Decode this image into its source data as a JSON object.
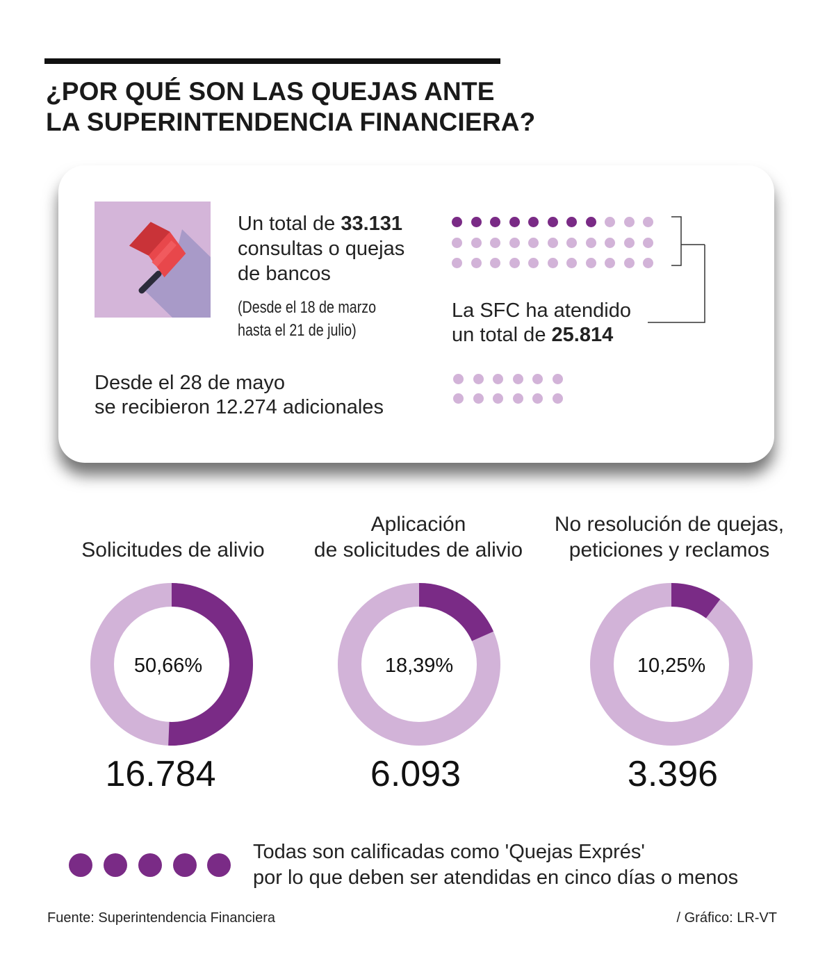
{
  "header": {
    "title_line1": "¿POR QUÉ SON LAS QUEJAS ANTE",
    "title_line2": "LA SUPERINTENDENCIA FINANCIERA?"
  },
  "summary": {
    "total_prefix": "Un total de ",
    "total_value": "33.131",
    "total_line2": "consultas o quejas",
    "total_line3": "de bancos",
    "range_line1": "(Desde el 18 de marzo",
    "range_line2": "hasta el 21 de julio)",
    "sfc_line1": "La SFC ha atendido",
    "sfc_prefix": "un total de ",
    "sfc_value": "25.814",
    "extra_line1": "Desde el 28 de mayo",
    "extra_line2": "se recibieron 12.274 adicionales"
  },
  "chart_data": [
    {
      "type": "pie",
      "label_line1": "",
      "label_line2": "Solicitudes de alivio",
      "percent": 50.66,
      "percent_label": "50,66%",
      "count_label": "16.784"
    },
    {
      "type": "pie",
      "label_line1": "Aplicación",
      "label_line2": "de solicitudes de alivio",
      "percent": 18.39,
      "percent_label": "18,39%",
      "count_label": "6.093"
    },
    {
      "type": "pie",
      "label_line1": "No resolución de quejas,",
      "label_line2": "peticiones y reclamos",
      "percent": 10.25,
      "percent_label": "10,25%",
      "count_label": "3.396"
    }
  ],
  "footer": {
    "note_line1": "Todas son calificadas como 'Quejas Exprés'",
    "note_line2": "por lo que deben ser atendidas en cinco días o menos",
    "source": "Fuente: Superintendencia Financiera",
    "credit": "/ Gráfico: LR-VT"
  },
  "colors": {
    "accent_dark": "#7a2b86",
    "accent_light": "#d2b3d8",
    "icon_bg": "#d4b5d9",
    "icon_shadow": "#a89ac8",
    "flag_red": "#e8474b"
  }
}
